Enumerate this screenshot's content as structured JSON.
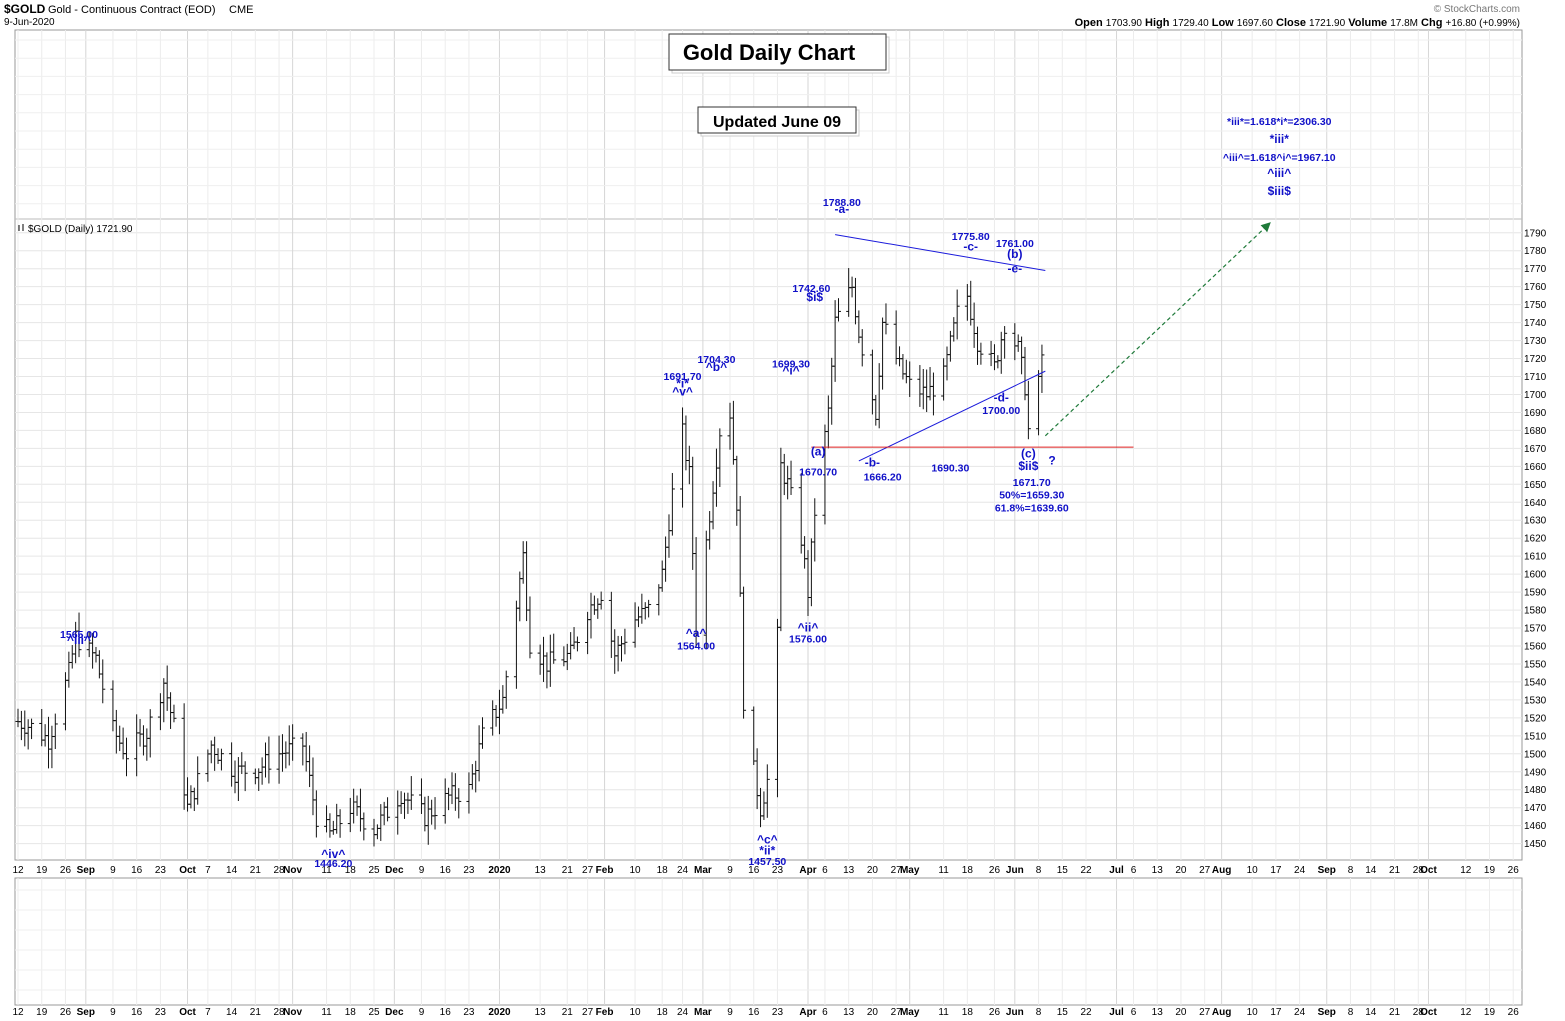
{
  "header": {
    "symbol": "$GOLD",
    "name": "Gold - Continuous Contract (EOD)",
    "exchange": "CME",
    "date": "9-Jun-2020",
    "ohlc": [
      {
        "label": "Open",
        "value": "1703.90"
      },
      {
        "label": "High",
        "value": "1729.40"
      },
      {
        "label": "Low",
        "value": "1697.60"
      },
      {
        "label": "Close",
        "value": "1721.90"
      },
      {
        "label": "Volume",
        "value": "17.8M"
      },
      {
        "label": "Chg",
        "value": "+16.80 (+0.99%)"
      }
    ],
    "watermark": "© StockCharts.com"
  },
  "panel_label": "$GOLD (Daily) 1721.90",
  "title_box": "Gold Daily Chart",
  "updated_box": "Updated June 09",
  "chart_data": {
    "type": "ohlc",
    "ylim": [
      1442,
      1796
    ],
    "y_ticks": [
      1450,
      1460,
      1470,
      1480,
      1490,
      1500,
      1510,
      1520,
      1530,
      1540,
      1550,
      1560,
      1570,
      1580,
      1590,
      1600,
      1610,
      1620,
      1630,
      1640,
      1650,
      1660,
      1670,
      1680,
      1690,
      1700,
      1710,
      1720,
      1730,
      1740,
      1750,
      1760,
      1770,
      1780,
      1790
    ],
    "x_axis": {
      "range": [
        "2019-08-12",
        "2020-10-28"
      ],
      "ticks": [
        {
          "date": "2019-08-12",
          "label": "12"
        },
        {
          "date": "2019-08-19",
          "label": "19"
        },
        {
          "date": "2019-08-26",
          "label": "26"
        },
        {
          "date": "2019-09-01",
          "label": "Sep",
          "bold": true
        },
        {
          "date": "2019-09-09",
          "label": "9"
        },
        {
          "date": "2019-09-16",
          "label": "16"
        },
        {
          "date": "2019-09-23",
          "label": "23"
        },
        {
          "date": "2019-10-01",
          "label": "Oct",
          "bold": true
        },
        {
          "date": "2019-10-07",
          "label": "7"
        },
        {
          "date": "2019-10-14",
          "label": "14"
        },
        {
          "date": "2019-10-21",
          "label": "21"
        },
        {
          "date": "2019-10-28",
          "label": "28"
        },
        {
          "date": "2019-11-01",
          "label": "Nov",
          "bold": true
        },
        {
          "date": "2019-11-11",
          "label": "11"
        },
        {
          "date": "2019-11-18",
          "label": "18"
        },
        {
          "date": "2019-11-25",
          "label": "25"
        },
        {
          "date": "2019-12-01",
          "label": "Dec",
          "bold": true
        },
        {
          "date": "2019-12-09",
          "label": "9"
        },
        {
          "date": "2019-12-16",
          "label": "16"
        },
        {
          "date": "2019-12-23",
          "label": "23"
        },
        {
          "date": "2020-01-01",
          "label": "2020",
          "bold": true
        },
        {
          "date": "2020-01-13",
          "label": "13"
        },
        {
          "date": "2020-01-21",
          "label": "21"
        },
        {
          "date": "2020-01-27",
          "label": "27"
        },
        {
          "date": "2020-02-01",
          "label": "Feb",
          "bold": true
        },
        {
          "date": "2020-02-10",
          "label": "10"
        },
        {
          "date": "2020-02-18",
          "label": "18"
        },
        {
          "date": "2020-02-24",
          "label": "24"
        },
        {
          "date": "2020-03-01",
          "label": "Mar",
          "bold": true
        },
        {
          "date": "2020-03-09",
          "label": "9"
        },
        {
          "date": "2020-03-16",
          "label": "16"
        },
        {
          "date": "2020-03-23",
          "label": "23"
        },
        {
          "date": "2020-04-01",
          "label": "Apr",
          "bold": true
        },
        {
          "date": "2020-04-06",
          "label": "6"
        },
        {
          "date": "2020-04-13",
          "label": "13"
        },
        {
          "date": "2020-04-20",
          "label": "20"
        },
        {
          "date": "2020-04-27",
          "label": "27"
        },
        {
          "date": "2020-05-01",
          "label": "May",
          "bold": true
        },
        {
          "date": "2020-05-11",
          "label": "11"
        },
        {
          "date": "2020-05-18",
          "label": "18"
        },
        {
          "date": "2020-05-26",
          "label": "26"
        },
        {
          "date": "2020-06-01",
          "label": "Jun",
          "bold": true
        },
        {
          "date": "2020-06-08",
          "label": "8"
        },
        {
          "date": "2020-06-15",
          "label": "15"
        },
        {
          "date": "2020-06-22",
          "label": "22"
        },
        {
          "date": "2020-07-01",
          "label": "Jul",
          "bold": true
        },
        {
          "date": "2020-07-06",
          "label": "6"
        },
        {
          "date": "2020-07-13",
          "label": "13"
        },
        {
          "date": "2020-07-20",
          "label": "20"
        },
        {
          "date": "2020-07-27",
          "label": "27"
        },
        {
          "date": "2020-08-01",
          "label": "Aug",
          "bold": true
        },
        {
          "date": "2020-08-10",
          "label": "10"
        },
        {
          "date": "2020-08-17",
          "label": "17"
        },
        {
          "date": "2020-08-24",
          "label": "24"
        },
        {
          "date": "2020-09-01",
          "label": "Sep",
          "bold": true
        },
        {
          "date": "2020-09-08",
          "label": "8"
        },
        {
          "date": "2020-09-14",
          "label": "14"
        },
        {
          "date": "2020-09-21",
          "label": "21"
        },
        {
          "date": "2020-09-28",
          "label": "28"
        },
        {
          "date": "2020-10-01",
          "label": "Oct",
          "bold": true
        },
        {
          "date": "2020-10-12",
          "label": "12"
        },
        {
          "date": "2020-10-19",
          "label": "19"
        },
        {
          "date": "2020-10-26",
          "label": "26"
        }
      ]
    },
    "price_path": [
      {
        "date": "2019-08-12",
        "price": 1518
      },
      {
        "date": "2019-08-16",
        "price": 1515
      },
      {
        "date": "2019-08-21",
        "price": 1508
      },
      {
        "date": "2019-08-27",
        "price": 1545
      },
      {
        "date": "2019-08-29",
        "price": 1565
      },
      {
        "date": "2019-09-04",
        "price": 1553
      },
      {
        "date": "2019-09-09",
        "price": 1513
      },
      {
        "date": "2019-09-13",
        "price": 1500
      },
      {
        "date": "2019-09-19",
        "price": 1512
      },
      {
        "date": "2019-09-24",
        "price": 1540
      },
      {
        "date": "2019-09-27",
        "price": 1515
      },
      {
        "date": "2019-10-01",
        "price": 1470
      },
      {
        "date": "2019-10-08",
        "price": 1505
      },
      {
        "date": "2019-10-15",
        "price": 1490
      },
      {
        "date": "2019-10-22",
        "price": 1492
      },
      {
        "date": "2019-10-28",
        "price": 1500
      },
      {
        "date": "2019-11-04",
        "price": 1505
      },
      {
        "date": "2019-11-08",
        "price": 1465
      },
      {
        "date": "2019-11-12",
        "price": 1455
      },
      {
        "date": "2019-11-18",
        "price": 1470
      },
      {
        "date": "2019-11-25",
        "price": 1458
      },
      {
        "date": "2019-12-03",
        "price": 1478
      },
      {
        "date": "2019-12-10",
        "price": 1465
      },
      {
        "date": "2019-12-17",
        "price": 1476
      },
      {
        "date": "2019-12-23",
        "price": 1480
      },
      {
        "date": "2019-12-27",
        "price": 1510
      },
      {
        "date": "2020-01-02",
        "price": 1530
      },
      {
        "date": "2020-01-08",
        "price": 1610
      },
      {
        "date": "2020-01-10",
        "price": 1562
      },
      {
        "date": "2020-01-15",
        "price": 1550
      },
      {
        "date": "2020-01-22",
        "price": 1555
      },
      {
        "date": "2020-01-27",
        "price": 1580
      },
      {
        "date": "2020-01-31",
        "price": 1590
      },
      {
        "date": "2020-02-04",
        "price": 1555
      },
      {
        "date": "2020-02-10",
        "price": 1575
      },
      {
        "date": "2020-02-14",
        "price": 1580
      },
      {
        "date": "2020-02-18",
        "price": 1600
      },
      {
        "date": "2020-02-21",
        "price": 1645
      },
      {
        "date": "2020-02-24",
        "price": 1678
      },
      {
        "date": "2020-02-26",
        "price": 1655
      },
      {
        "date": "2020-02-28",
        "price": 1570
      },
      {
        "date": "2020-03-04",
        "price": 1650
      },
      {
        "date": "2020-03-06",
        "price": 1680
      },
      {
        "date": "2020-03-09",
        "price": 1690
      },
      {
        "date": "2020-03-11",
        "price": 1640
      },
      {
        "date": "2020-03-13",
        "price": 1530
      },
      {
        "date": "2020-03-16",
        "price": 1490
      },
      {
        "date": "2020-03-18",
        "price": 1470
      },
      {
        "date": "2020-03-20",
        "price": 1485
      },
      {
        "date": "2020-03-23",
        "price": 1565
      },
      {
        "date": "2020-03-24",
        "price": 1660
      },
      {
        "date": "2020-03-26",
        "price": 1650
      },
      {
        "date": "2020-03-30",
        "price": 1620
      },
      {
        "date": "2020-04-01",
        "price": 1590
      },
      {
        "date": "2020-04-03",
        "price": 1635
      },
      {
        "date": "2020-04-07",
        "price": 1690
      },
      {
        "date": "2020-04-09",
        "price": 1740
      },
      {
        "date": "2020-04-14",
        "price": 1760
      },
      {
        "date": "2020-04-16",
        "price": 1735
      },
      {
        "date": "2020-04-21",
        "price": 1690
      },
      {
        "date": "2020-04-23",
        "price": 1740
      },
      {
        "date": "2020-04-28",
        "price": 1715
      },
      {
        "date": "2020-05-01",
        "price": 1705
      },
      {
        "date": "2020-05-06",
        "price": 1700
      },
      {
        "date": "2020-05-11",
        "price": 1710
      },
      {
        "date": "2020-05-15",
        "price": 1745
      },
      {
        "date": "2020-05-18",
        "price": 1755
      },
      {
        "date": "2020-05-21",
        "price": 1730
      },
      {
        "date": "2020-05-26",
        "price": 1715
      },
      {
        "date": "2020-05-29",
        "price": 1740
      },
      {
        "date": "2020-06-02",
        "price": 1725
      },
      {
        "date": "2020-06-04",
        "price": 1705
      },
      {
        "date": "2020-06-05",
        "price": 1680
      },
      {
        "date": "2020-06-08",
        "price": 1705
      },
      {
        "date": "2020-06-09",
        "price": 1721.9
      }
    ],
    "lines": [
      {
        "name": "triangle-upper",
        "color": "#1a1adb",
        "from": {
          "date": "2020-04-09",
          "price": 1789
        },
        "to": {
          "date": "2020-06-10",
          "price": 1769
        }
      },
      {
        "name": "triangle-lower",
        "color": "#1a1adb",
        "from": {
          "date": "2020-04-16",
          "price": 1663
        },
        "to": {
          "date": "2020-06-10",
          "price": 1713
        }
      },
      {
        "name": "support",
        "color": "#e02020",
        "from": {
          "date": "2020-04-02",
          "price": 1670.7
        },
        "to": {
          "date": "2020-07-06",
          "price": 1670.7
        }
      },
      {
        "name": "projection",
        "color": "#1f7a3a",
        "dashed": true,
        "from": {
          "date": "2020-06-10",
          "price": 1677
        },
        "to": {
          "date": "2020-08-15",
          "price": 1795
        }
      }
    ],
    "annotations": [
      {
        "text": "1565.00",
        "date": "2019-08-30",
        "price": 1564.5
      },
      {
        "text": "^iii^",
        "date": "2019-08-30",
        "price": 1561
      },
      {
        "text": "^iv^",
        "date": "2019-11-13",
        "price": 1442
      },
      {
        "text": "1446.20",
        "date": "2019-11-13",
        "price": 1437
      },
      {
        "text": "1691.70",
        "date": "2020-02-24",
        "price": 1708
      },
      {
        "text": "*i*",
        "date": "2020-02-24",
        "price": 1704
      },
      {
        "text": "^v^",
        "date": "2020-02-24",
        "price": 1699.5
      },
      {
        "text": "^a^",
        "date": "2020-02-28",
        "price": 1565
      },
      {
        "text": "1564.00",
        "date": "2020-02-28",
        "price": 1558
      },
      {
        "text": "1704.30",
        "date": "2020-03-05",
        "price": 1717.5
      },
      {
        "text": "^b^",
        "date": "2020-03-05",
        "price": 1713
      },
      {
        "text": "1699.30",
        "date": "2020-03-27",
        "price": 1715
      },
      {
        "text": "^i^",
        "date": "2020-03-27",
        "price": 1711
      },
      {
        "text": "^ii^",
        "date": "2020-04-01",
        "price": 1568
      },
      {
        "text": "1576.00",
        "date": "2020-04-01",
        "price": 1562
      },
      {
        "text": "^c^",
        "date": "2020-03-20",
        "price": 1450
      },
      {
        "text": "*ii*",
        "date": "2020-03-20",
        "price": 1444
      },
      {
        "text": "1457.50",
        "date": "2020-03-20",
        "price": 1438
      },
      {
        "text": "1788.80",
        "date": "2020-04-11",
        "price": 1805
      },
      {
        "text": "-a-",
        "date": "2020-04-11",
        "price": 1801
      },
      {
        "text": "1742.60",
        "date": "2020-04-02",
        "price": 1757
      },
      {
        "text": "$i$",
        "date": "2020-04-03",
        "price": 1752
      },
      {
        "text": "(a)",
        "date": "2020-04-04",
        "price": 1666
      },
      {
        "text": "1670.70",
        "date": "2020-04-04",
        "price": 1655
      },
      {
        "text": "-b-",
        "date": "2020-04-20",
        "price": 1660
      },
      {
        "text": "1666.20",
        "date": "2020-04-23",
        "price": 1652
      },
      {
        "text": "1775.80",
        "date": "2020-05-19",
        "price": 1786
      },
      {
        "text": "-c-",
        "date": "2020-05-19",
        "price": 1780
      },
      {
        "text": "1761.00",
        "date": "2020-06-01",
        "price": 1782
      },
      {
        "text": "(b)",
        "date": "2020-06-01",
        "price": 1776
      },
      {
        "text": "-e-",
        "date": "2020-06-01",
        "price": 1768
      },
      {
        "text": "-d-",
        "date": "2020-05-28",
        "price": 1696
      },
      {
        "text": "1700.00",
        "date": "2020-05-28",
        "price": 1689
      },
      {
        "text": "1690.30",
        "date": "2020-05-13",
        "price": 1657
      },
      {
        "text": "(c)",
        "date": "2020-06-05",
        "price": 1665
      },
      {
        "text": "$ii$",
        "date": "2020-06-05",
        "price": 1658
      },
      {
        "text": "1671.70",
        "date": "2020-06-06",
        "price": 1649
      },
      {
        "text": "50%=1659.30",
        "date": "2020-06-06",
        "price": 1642
      },
      {
        "text": "61.8%=1639.60",
        "date": "2020-06-06",
        "price": 1635
      },
      {
        "text": "?",
        "date": "2020-06-12",
        "price": 1661
      },
      {
        "text": "*iii*=1.618*i*=2306.30",
        "date": "2020-08-18",
        "price": 1850
      },
      {
        "text": "*iii*",
        "date": "2020-08-18",
        "price": 1840
      },
      {
        "text": "^iii^=1.618^i^=1967.10",
        "date": "2020-08-18",
        "price": 1830
      },
      {
        "text": "^iii^",
        "date": "2020-08-18",
        "price": 1821
      },
      {
        "text": "$iii$",
        "date": "2020-08-18",
        "price": 1811
      }
    ]
  }
}
